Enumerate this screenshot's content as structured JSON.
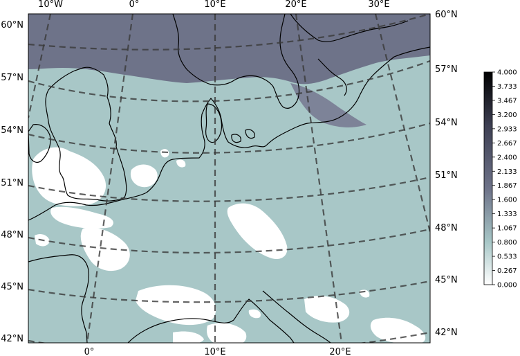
{
  "map": {
    "top_lon_labels": [
      "10°W",
      "0°",
      "10°E",
      "20°E",
      "30°E"
    ],
    "bottom_lon_labels": [
      "0°",
      "10°E",
      "20°E"
    ],
    "left_lat_labels": [
      "60°N",
      "57°N",
      "54°N",
      "51°N",
      "48°N",
      "45°N",
      "42°N"
    ],
    "right_lat_labels": [
      "60°N",
      "57°N",
      "54°N",
      "51°N",
      "48°N",
      "45°N",
      "42°N"
    ],
    "colors": {
      "background": "#a8c7c7",
      "high_band": "#6e7389",
      "clear": "#ffffff",
      "coastline": "#000000",
      "graticule": "#3a3a3a"
    }
  },
  "colorbar": {
    "ticks": [
      "4.000",
      "3.733",
      "3.467",
      "3.200",
      "2.933",
      "2.667",
      "2.400",
      "2.133",
      "1.867",
      "1.600",
      "1.333",
      "1.067",
      "0.800",
      "0.533",
      "0.267",
      "0.000"
    ],
    "min": 0.0,
    "max": 4.0,
    "colormap": "bone_r"
  }
}
